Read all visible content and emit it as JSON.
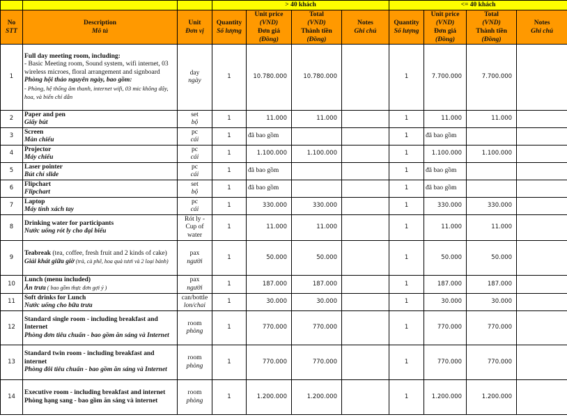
{
  "groups": {
    "gt40": "> 40 khách",
    "le40": "<= 40 khách"
  },
  "headers": {
    "no": [
      "No",
      "STT"
    ],
    "desc": [
      "Description",
      "Mô tả"
    ],
    "unit": [
      "Unit",
      "Đơn vị"
    ],
    "qty": [
      "Quantity",
      "Số lượng"
    ],
    "price": [
      "Unit price",
      "(VND)",
      "Đơn giá",
      "(Đồng)"
    ],
    "total": [
      "Total",
      "(VND)",
      "Thành tiền",
      "(Đồng)"
    ],
    "notes": [
      "Notes",
      "Ghi chú"
    ]
  },
  "rows": [
    {
      "no": "1",
      "en": "Full day meeting room, including:",
      "en_note": "- Basic Meeting room, Sound system, wifi internet, 03 wireless microes, floral arrangement and signboard",
      "vi": "Phòng hội thảo nguyên ngày, bao gồm:",
      "vi_note": "- Phòng, hệ thống âm thanh, internet wifi, 03 mic không dây, hoa, và biển chỉ dẫn",
      "unit_en": "day",
      "unit_vi": "ngày",
      "q1": "1",
      "p1": "10.780.000",
      "t1": "10.780.000",
      "q2": "1",
      "p2": "7.700.000",
      "t2": "7.700.000"
    },
    {
      "no": "2",
      "en": "Paper and pen",
      "vi": "Giấy bút",
      "unit_en": "set",
      "unit_vi": "bộ",
      "q1": "1",
      "p1": "11.000",
      "t1": "11.000",
      "q2": "1",
      "p2": "11.000",
      "t2": "11.000"
    },
    {
      "no": "3",
      "en": "Screen",
      "vi": "Màn chiếu",
      "unit_en": "pc",
      "unit_vi": "cái",
      "q1": "1",
      "p1": "đã bao gồm",
      "t1": "",
      "q2": "1",
      "p2": "đã bao gồm",
      "t2": ""
    },
    {
      "no": "4",
      "en": "Projector",
      "vi": "Máy chiếu",
      "unit_en": "pc",
      "unit_vi": "cái",
      "q1": "1",
      "p1": "1.100.000",
      "t1": "1.100.000",
      "q2": "1",
      "p2": "1.100.000",
      "t2": "1.100.000"
    },
    {
      "no": "5",
      "en": "Laser pointer",
      "vi": "Bút chỉ slide",
      "unit_en": "pc",
      "unit_vi": "cái",
      "q1": "1",
      "p1": "đã bao gồm",
      "t1": "",
      "q2": "1",
      "p2": "đã bao gồm",
      "t2": ""
    },
    {
      "no": "6",
      "en": "Flipchart",
      "vi": "Flipchart",
      "unit_en": "set",
      "unit_vi": "bộ",
      "q1": "1",
      "p1": "đã bao gồm",
      "t1": "",
      "q2": "1",
      "p2": "đã bao gồm",
      "t2": ""
    },
    {
      "no": "7",
      "en": "Laptop",
      "vi": "Máy tính xách tay",
      "unit_en": "pc",
      "unit_vi": "cái",
      "q1": "1",
      "p1": "330.000",
      "t1": "330.000",
      "q2": "1",
      "p2": "330.000",
      "t2": "330.000"
    },
    {
      "no": "8",
      "en": "Drinking water for participants",
      "vi": "Nước uống rót ly cho đại biểu",
      "unit_en": "Rót ly - Cup of water",
      "unit_vi": "",
      "q1": "1",
      "p1": "11.000",
      "t1": "11.000",
      "q2": "1",
      "p2": "11.000",
      "t2": "11.000"
    },
    {
      "no": "9",
      "en": "Teabreak",
      "en_inline": " (tea, coffee, fresh fruit and 2 kinds of cake)",
      "vi": "Giải khát giữa giờ",
      "vi_inline": "  (trà, cà phê, hoa quả tươi và 2 loại bánh)",
      "unit_en": "pax",
      "unit_vi": "người",
      "q1": "1",
      "p1": "50.000",
      "t1": "50.000",
      "q2": "1",
      "p2": "50.000",
      "t2": "50.000"
    },
    {
      "no": "10",
      "en": "Lunch (menu included)",
      "vi": "Ăn trưa",
      "vi_inline": " ( bao gồm thực đơn gợi ý )",
      "unit_en": "pax",
      "unit_vi": "người",
      "q1": "1",
      "p1": "187.000",
      "t1": "187.000",
      "q2": "1",
      "p2": "187.000",
      "t2": "187.000"
    },
    {
      "no": "11",
      "en": "Soft drinks for Lunch",
      "vi": "Nước uống cho bữa trưa",
      "unit_en": "can/bottle",
      "unit_vi": "lon/chai",
      "q1": "1",
      "p1": "30.000",
      "t1": "30.000",
      "q2": "1",
      "p2": "30.000",
      "t2": "30.000"
    },
    {
      "no": "12",
      "en": "Standard single room - including breakfast and Internet",
      "vi": "Phòng đơn tiêu chuẩn - bao gồm ăn sáng và Internet",
      "unit_en": "room",
      "unit_vi": "phòng",
      "q1": "1",
      "p1": "770.000",
      "t1": "770.000",
      "q2": "1",
      "p2": "770.000",
      "t2": "770.000"
    },
    {
      "no": "13",
      "en": "Standard twin room - including breakfast and internet",
      "vi": "Phòng đôi tiêu chuẩn - bao gồm ăn sáng và Internet",
      "unit_en": "room",
      "unit_vi": "phòng",
      "q1": "1",
      "p1": "770.000",
      "t1": "770.000",
      "q2": "1",
      "p2": "770.000",
      "t2": "770.000"
    },
    {
      "no": "14",
      "en": "Executive room - including breakfast and internet",
      "vi": "Phòng hạng sang - bao gồm ăn sáng và internet",
      "vi_upright": true,
      "unit_en": "room",
      "unit_vi": "phòng",
      "q1": "1",
      "p1": "1.200.000",
      "t1": "1.200.000",
      "q2": "1",
      "p2": "1.200.000",
      "t2": "1.200.000"
    }
  ]
}
